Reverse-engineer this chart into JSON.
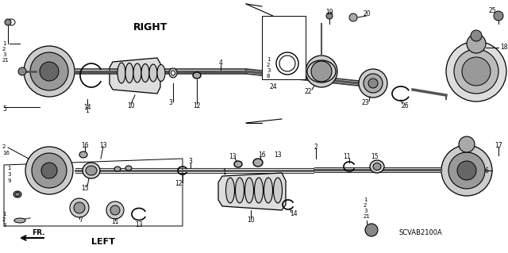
{
  "bg_color": "#ffffff",
  "line_color": "#000000",
  "gray1": "#888888",
  "gray2": "#555555",
  "gray3": "#cccccc",
  "gray4": "#444444",
  "right_label": "RIGHT",
  "left_label": "LEFT",
  "fr_label": "FR.",
  "diagram_label": "SCVAB2100A",
  "figsize": [
    6.4,
    3.19
  ],
  "dpi": 100
}
